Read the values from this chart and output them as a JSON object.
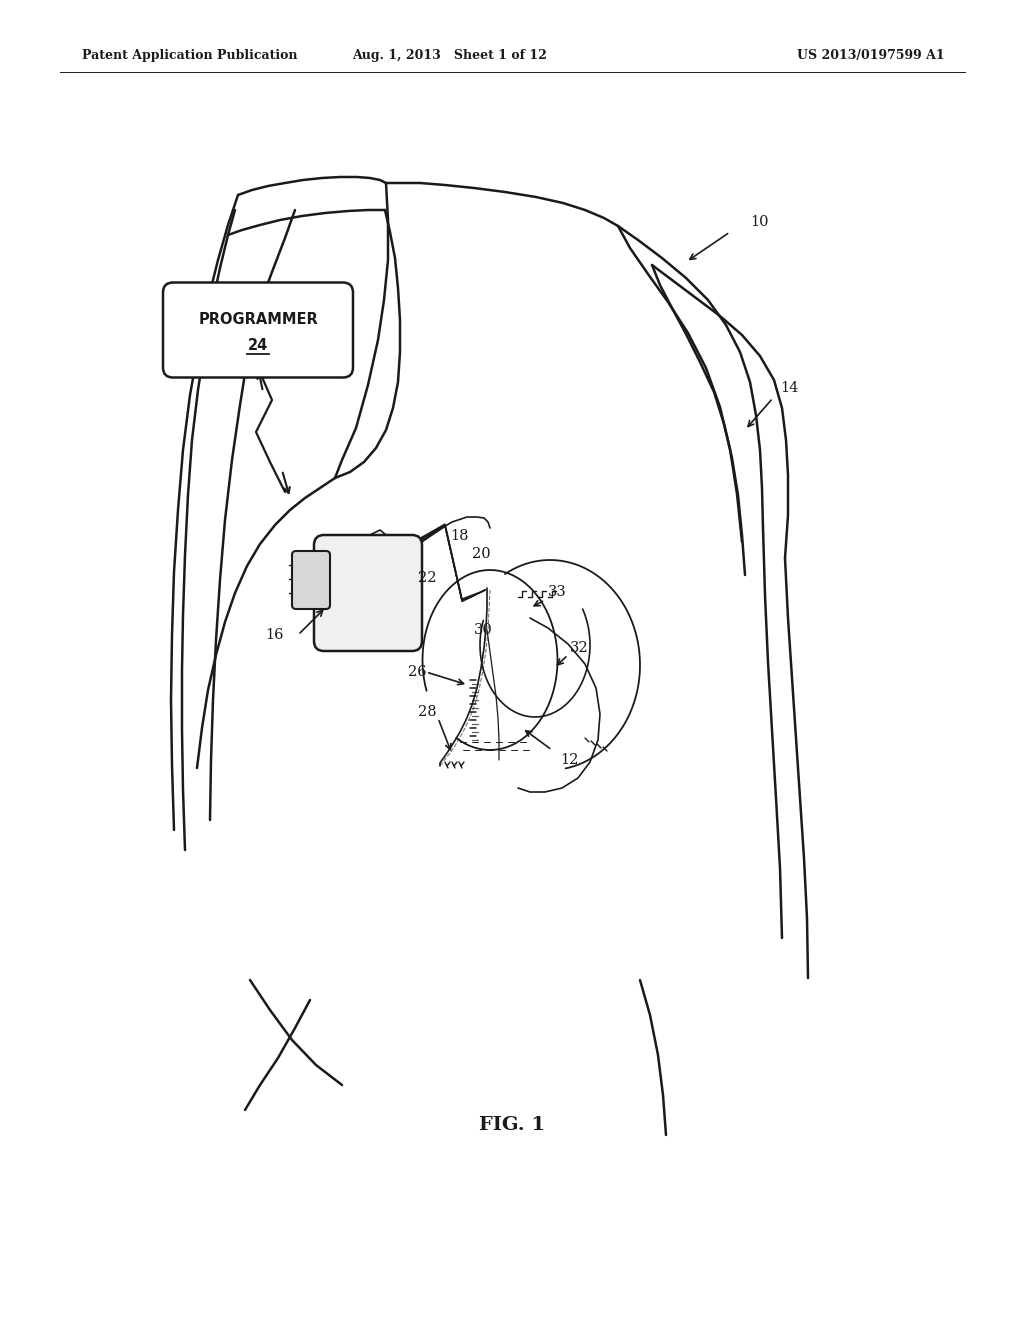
{
  "bg_color": "#ffffff",
  "lc": "#1a1a1a",
  "header_left": "Patent Application Publication",
  "header_mid": "Aug. 1, 2013   Sheet 1 of 12",
  "header_right": "US 2013/0197599 A1",
  "fig_label": "FIG. 1"
}
